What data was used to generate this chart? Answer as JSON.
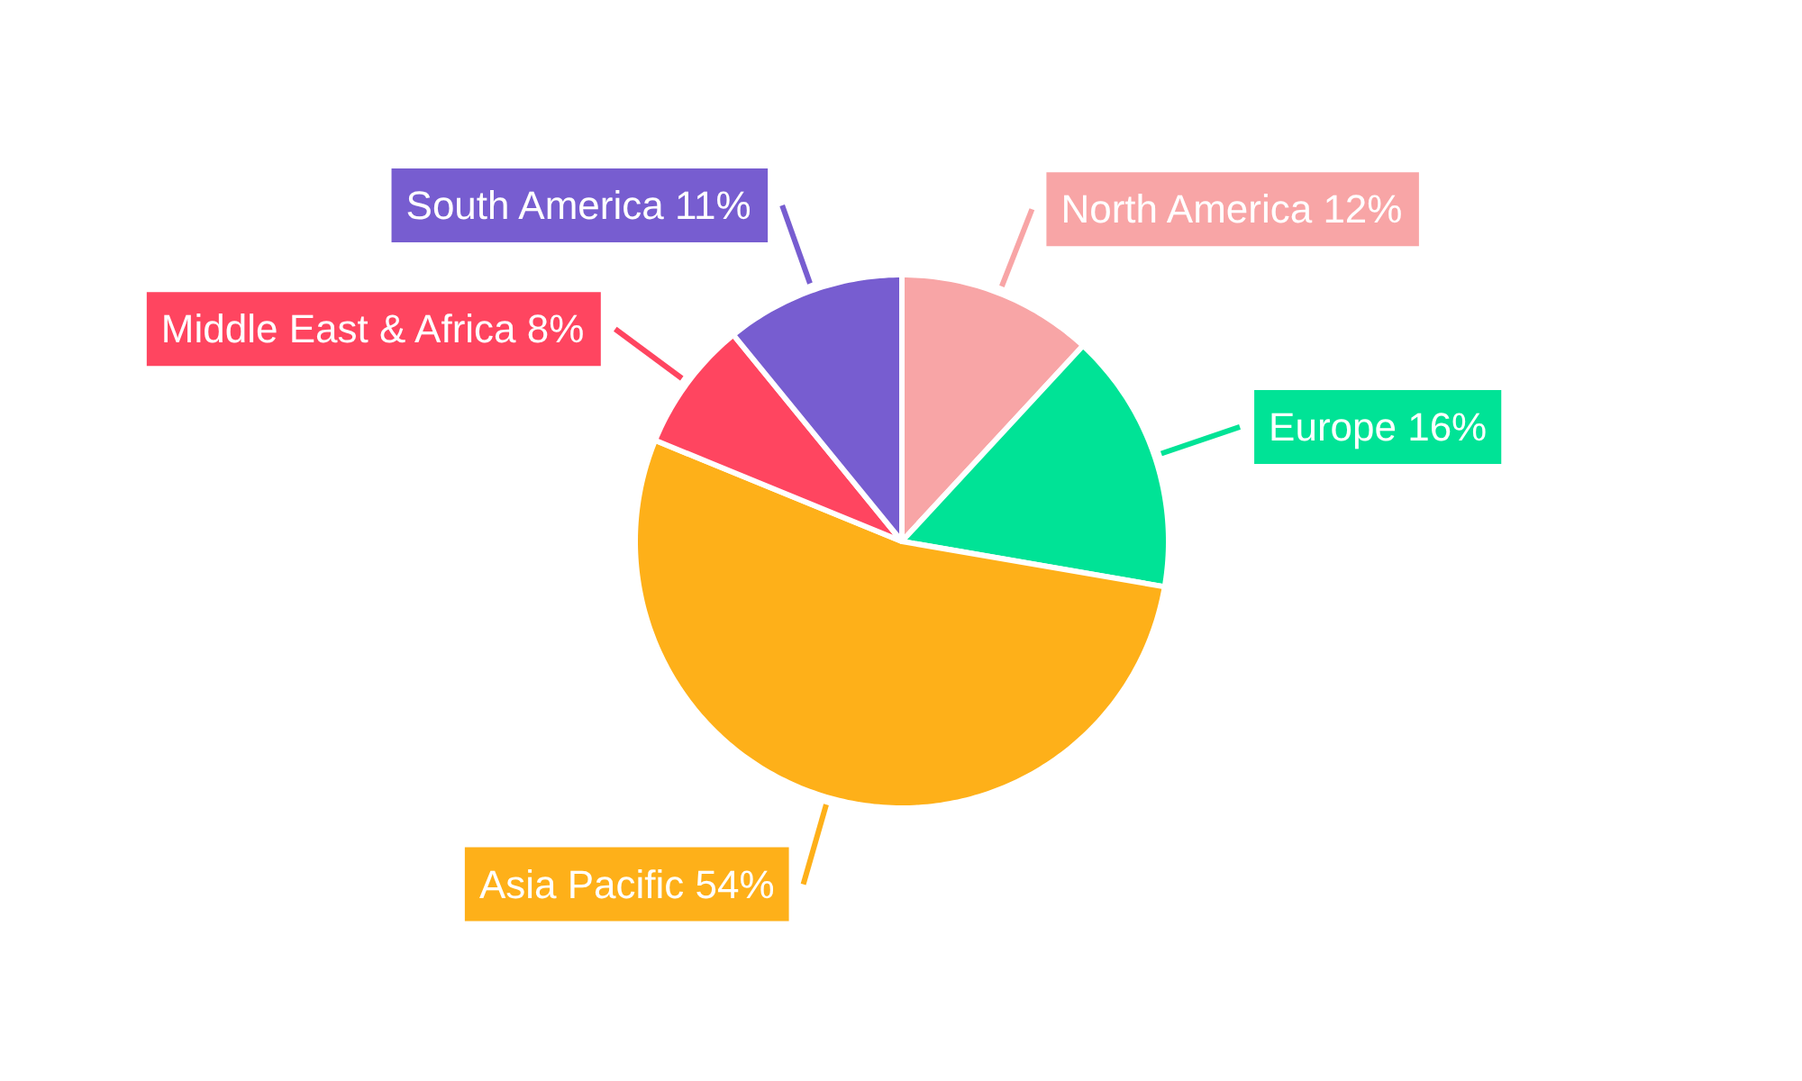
{
  "chart_data": {
    "type": "pie",
    "categories": [
      "North America",
      "Europe",
      "Asia Pacific",
      "Middle East & Africa",
      "South America"
    ],
    "values": [
      12,
      16,
      54,
      8,
      11
    ],
    "colors": [
      "#f8a5a6",
      "#00e396",
      "#feb019",
      "#ff4560",
      "#775dd0"
    ],
    "value_labels": [
      "12%",
      "16%",
      "54%",
      "8%",
      "11%"
    ]
  }
}
